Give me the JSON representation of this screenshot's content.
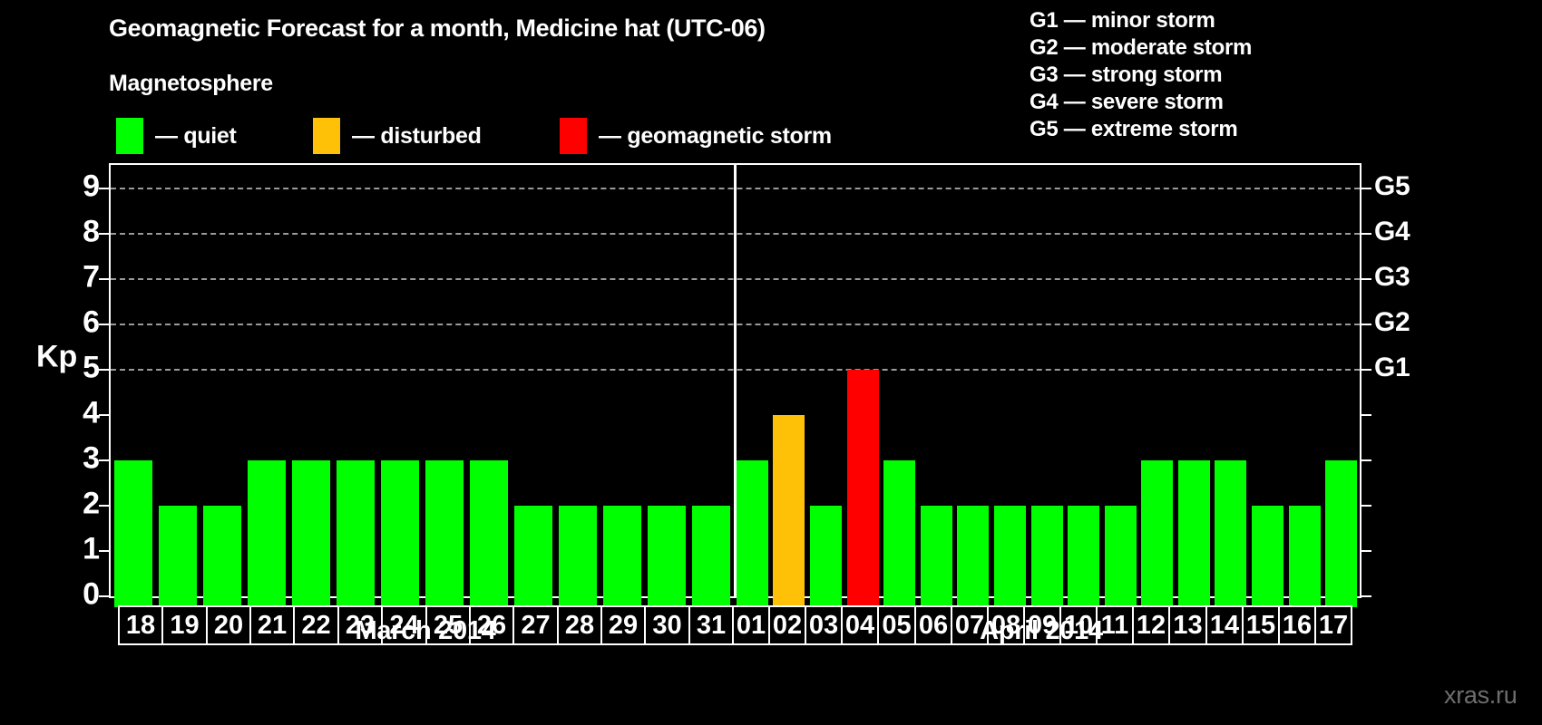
{
  "title": "Geomagnetic Forecast for a month, Medicine hat (UTC-06)",
  "legend": {
    "heading": "Magnetosphere",
    "items": [
      {
        "label": "— quiet",
        "color": "#00ff00",
        "status": "quiet"
      },
      {
        "label": "— disturbed",
        "color": "#ffc107",
        "status": "disturbed"
      },
      {
        "label": "— geomagnetic storm",
        "color": "#ff0000",
        "status": "storm"
      }
    ]
  },
  "g_scale_legend": [
    "G1 — minor storm",
    "G2 — moderate storm",
    "G3 — strong storm",
    "G4 — severe storm",
    "G5 — extreme storm"
  ],
  "y_axis": {
    "label": "Kp",
    "ticks": [
      0,
      1,
      2,
      3,
      4,
      5,
      6,
      7,
      8,
      9
    ]
  },
  "right_axis": {
    "labels": [
      {
        "text": "G1",
        "kp": 5
      },
      {
        "text": "G2",
        "kp": 6
      },
      {
        "text": "G3",
        "kp": 7
      },
      {
        "text": "G4",
        "kp": 8
      },
      {
        "text": "G5",
        "kp": 9
      }
    ]
  },
  "watermark": "xras.ru",
  "chart_data": {
    "type": "bar",
    "title": "Geomagnetic Forecast for a month, Medicine hat (UTC-06)",
    "xlabel": "",
    "ylabel": "Kp",
    "ylim": [
      0,
      9
    ],
    "grid": "horizontal dashed lines only at Kp 5-9 (G1-G5 levels)",
    "legend_position": "top-left",
    "gridlines_at": [
      5,
      6,
      7,
      8,
      9
    ],
    "status_colors": {
      "quiet": "#00ff00",
      "disturbed": "#ffc107",
      "storm": "#ff0000"
    },
    "months": [
      {
        "label": "March 2014",
        "days": [
          "18",
          "19",
          "20",
          "21",
          "22",
          "23",
          "24",
          "25",
          "26",
          "27",
          "28",
          "29",
          "30",
          "31"
        ],
        "values": [
          3,
          2,
          2,
          3,
          3,
          3,
          3,
          3,
          3,
          2,
          2,
          2,
          2,
          2
        ],
        "statuses": [
          "quiet",
          "quiet",
          "quiet",
          "quiet",
          "quiet",
          "quiet",
          "quiet",
          "quiet",
          "quiet",
          "quiet",
          "quiet",
          "quiet",
          "quiet",
          "quiet"
        ]
      },
      {
        "label": "April 2014",
        "days": [
          "01",
          "02",
          "03",
          "04",
          "05",
          "06",
          "07",
          "08",
          "09",
          "10",
          "11",
          "12",
          "13",
          "14",
          "15",
          "16",
          "17"
        ],
        "values": [
          3,
          4,
          2,
          5,
          3,
          2,
          2,
          2,
          2,
          2,
          2,
          3,
          3,
          3,
          2,
          2,
          3
        ],
        "statuses": [
          "quiet",
          "disturbed",
          "quiet",
          "storm",
          "quiet",
          "quiet",
          "quiet",
          "quiet",
          "quiet",
          "quiet",
          "quiet",
          "quiet",
          "quiet",
          "quiet",
          "quiet",
          "quiet",
          "quiet"
        ]
      }
    ]
  }
}
